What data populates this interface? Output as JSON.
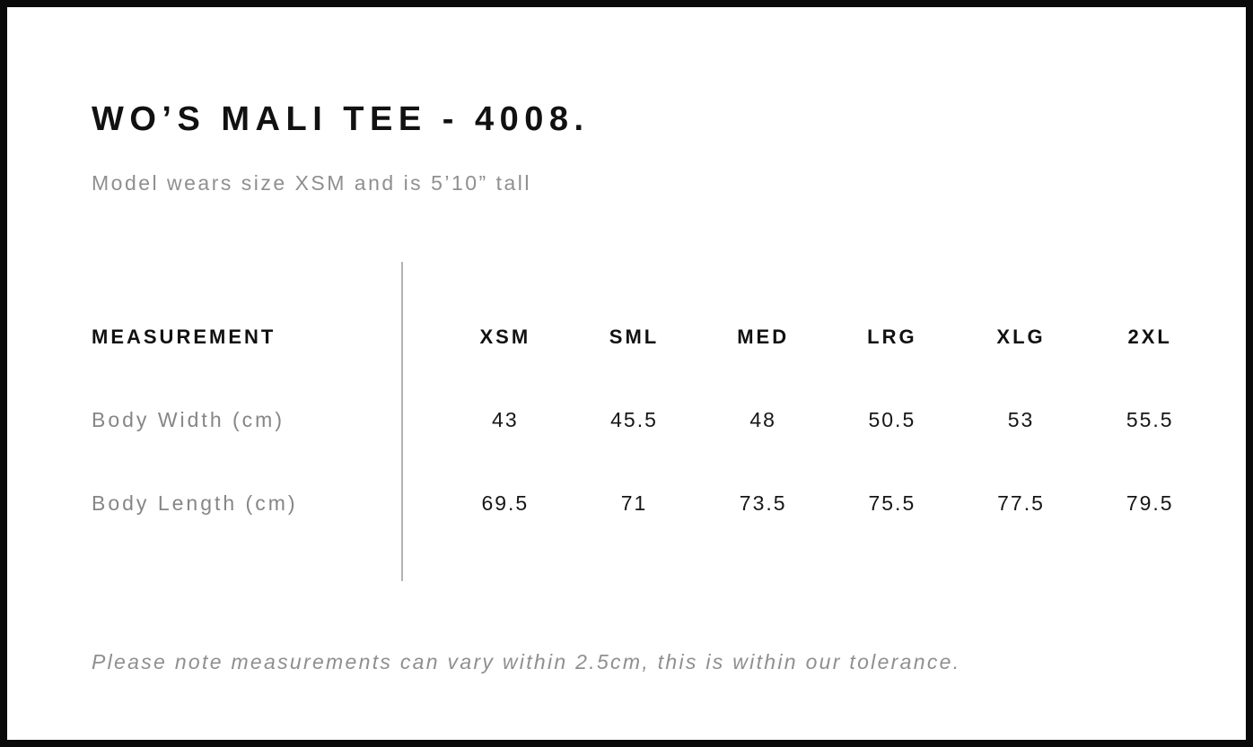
{
  "header": {
    "title": "WO’S MALI TEE - 4008.",
    "subtitle": "Model wears size XSM and is 5’10” tall"
  },
  "size_chart": {
    "measurement_header": "MEASUREMENT",
    "size_headers": [
      "XSM",
      "SML",
      "MED",
      "LRG",
      "XLG",
      "2XL"
    ],
    "rows": [
      {
        "label": "Body Width (cm)",
        "values": [
          "43",
          "45.5",
          "48",
          "50.5",
          "53",
          "55.5"
        ]
      },
      {
        "label": "Body Length (cm)",
        "values": [
          "69.5",
          "71",
          "73.5",
          "75.5",
          "77.5",
          "79.5"
        ]
      }
    ]
  },
  "footer": {
    "note": "Please note measurements can vary within 2.5cm, this is within our tolerance."
  },
  "colors": {
    "frame_border": "#0a0a0a",
    "title_text": "#111111",
    "muted_text": "#8f8f8f",
    "divider": "#b3b3b3"
  }
}
